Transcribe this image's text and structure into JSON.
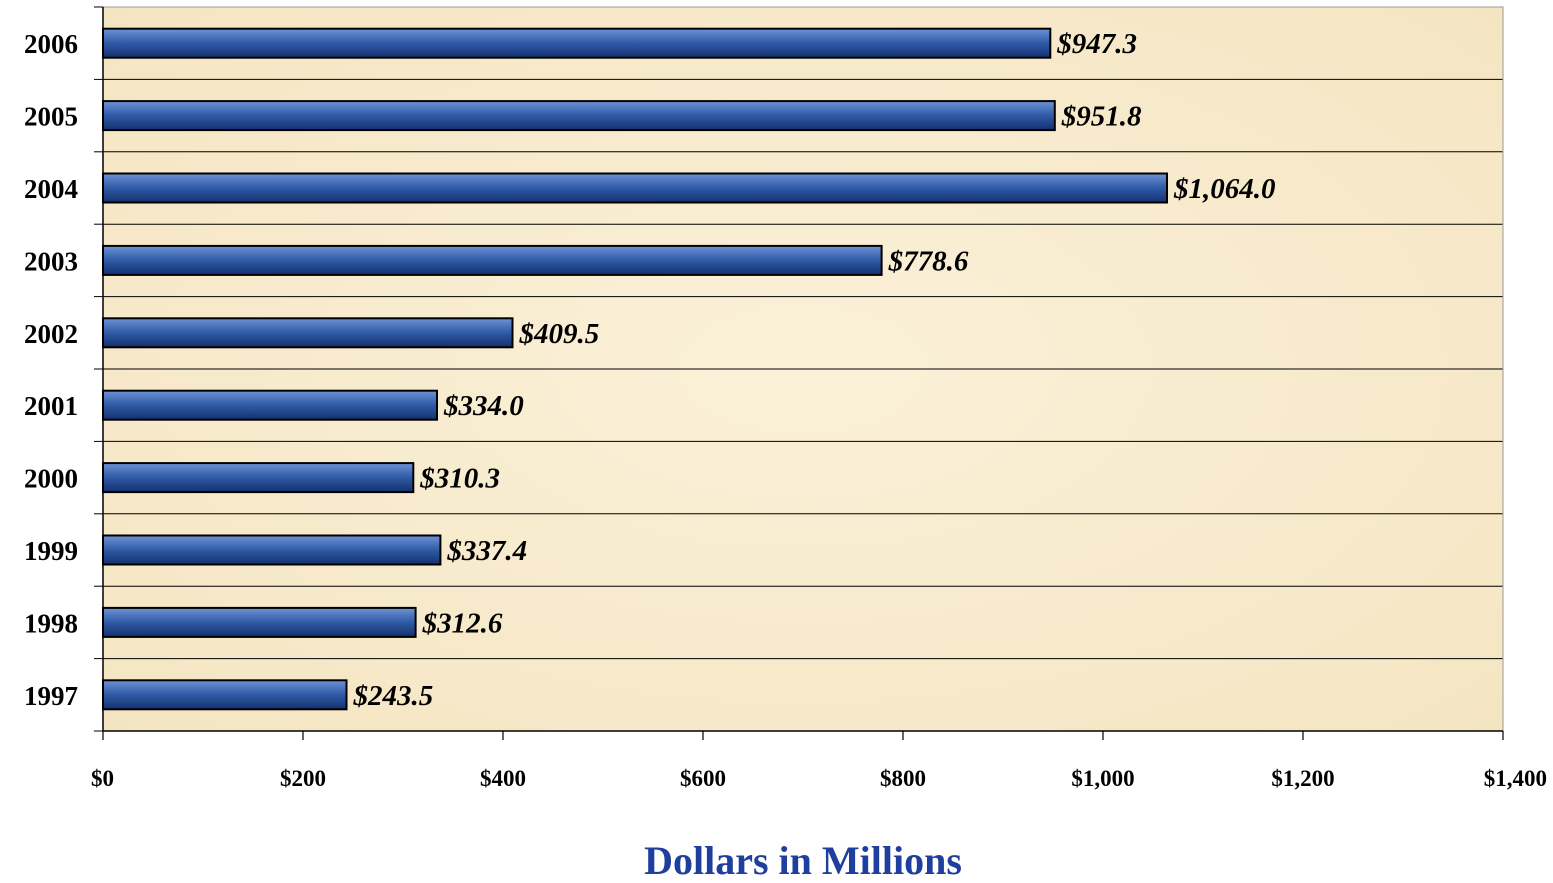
{
  "chart_data": {
    "type": "bar",
    "orientation": "horizontal",
    "categories": [
      "2006",
      "2005",
      "2004",
      "2003",
      "2002",
      "2001",
      "2000",
      "1999",
      "1998",
      "1997"
    ],
    "values": [
      947.3,
      951.8,
      1064.0,
      778.6,
      409.5,
      334.0,
      310.3,
      337.4,
      312.6,
      243.5
    ],
    "data_labels": [
      "$947.3",
      "$951.8",
      "$1,064.0",
      "$778.6",
      "$409.5",
      "$334.0",
      "$310.3",
      "$337.4",
      "$312.6",
      "$243.5"
    ],
    "x_ticks": [
      "$0",
      "$200",
      "$400",
      "$600",
      "$800",
      "$1,000",
      "$1,200",
      "$1,400"
    ],
    "xlim": [
      0,
      1400
    ],
    "xlabel": "Dollars in Millions",
    "ylabel": "",
    "title": "",
    "grid": "horizontal lines between categories",
    "legend": "none",
    "colors": {
      "bar": "#2f5aa6",
      "bar_light": "#6f93d6",
      "bar_dark": "#14306e",
      "plot_background": "#f8ebcd",
      "xlabel": "#1f3f9f"
    }
  }
}
